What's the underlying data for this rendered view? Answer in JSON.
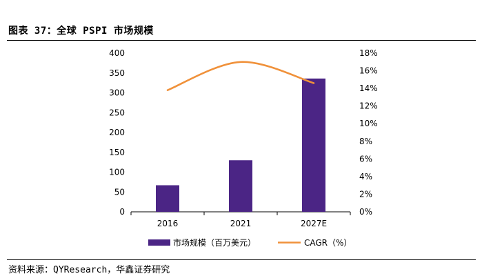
{
  "header": {
    "title": "图表 37：全球 PSPI 市场规模"
  },
  "footer": {
    "source": "资料来源：QYResearch，华鑫证券研究"
  },
  "chart_data": {
    "type": "bar",
    "categories": [
      "2016",
      "2021",
      "2027E"
    ],
    "series": [
      {
        "name": "市场规模（百万美元）",
        "type": "bar",
        "axis": "left",
        "values": [
          67,
          130,
          336
        ],
        "color": "#4b2585"
      },
      {
        "name": "CAGR（%）",
        "type": "line",
        "axis": "right",
        "smooth": true,
        "x": [
          "2016",
          "2021",
          "2027E"
        ],
        "values": [
          13.8,
          17.0,
          14.6
        ],
        "color": "#f0913a"
      }
    ],
    "ylim": [
      0,
      400
    ],
    "y_ticks": [
      "0",
      "50",
      "100",
      "150",
      "200",
      "250",
      "300",
      "350",
      "400"
    ],
    "y2lim": [
      0,
      18
    ],
    "y2_ticks": [
      "0%",
      "2%",
      "4%",
      "6%",
      "8%",
      "10%",
      "12%",
      "14%",
      "16%",
      "18%"
    ],
    "legend_position": "bottom",
    "grid": false
  }
}
